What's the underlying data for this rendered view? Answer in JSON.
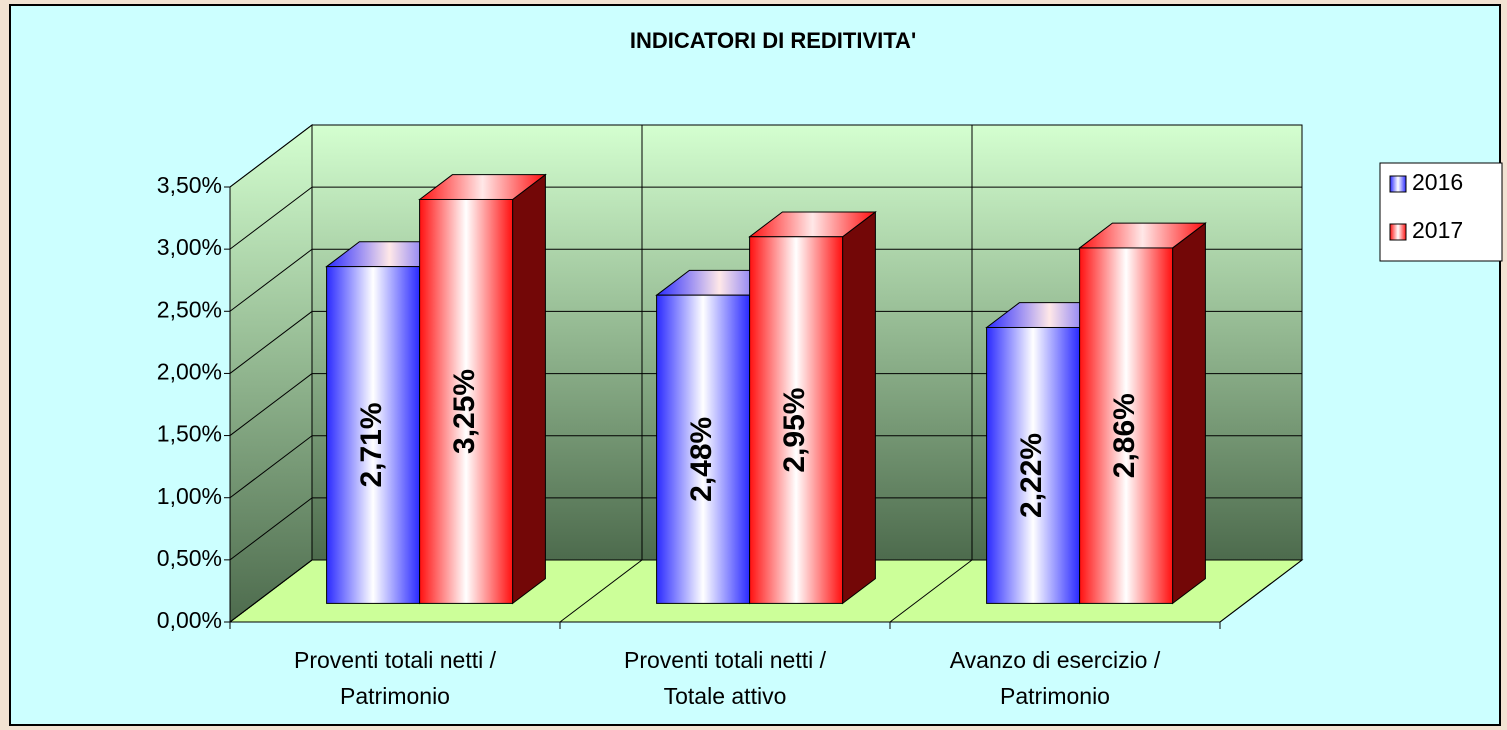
{
  "chart_data": {
    "type": "bar3d",
    "title": "INDICATORI DI REDITIVITA'",
    "categories": [
      [
        "Proventi totali netti /",
        "Patrimonio"
      ],
      [
        "Proventi totali netti /",
        "Totale attivo"
      ],
      [
        "Avanzo di esercizio /",
        "Patrimonio"
      ]
    ],
    "series": [
      {
        "name": "2016",
        "color": "#2a2aff",
        "values": [
          2.71,
          2.48,
          2.22
        ],
        "value_labels": [
          "2,71%",
          "2,48%",
          "2,22%"
        ]
      },
      {
        "name": "2017",
        "color": "#ff1010",
        "values": [
          3.25,
          2.95,
          2.86
        ],
        "value_labels": [
          "3,25%",
          "2,95%",
          "2,86%"
        ]
      }
    ],
    "ylim": [
      0,
      3.5
    ],
    "yticks": [
      {
        "value": 0,
        "label": "0,00%"
      },
      {
        "value": 0.5,
        "label": "0,50%"
      },
      {
        "value": 1,
        "label": "1,00%"
      },
      {
        "value": 1.5,
        "label": "1,50%"
      },
      {
        "value": 2,
        "label": "2,00%"
      },
      {
        "value": 2.5,
        "label": "2,50%"
      },
      {
        "value": 3,
        "label": "3,00%"
      },
      {
        "value": 3.5,
        "label": "3,50%"
      }
    ],
    "grid": true,
    "legend": "right"
  }
}
